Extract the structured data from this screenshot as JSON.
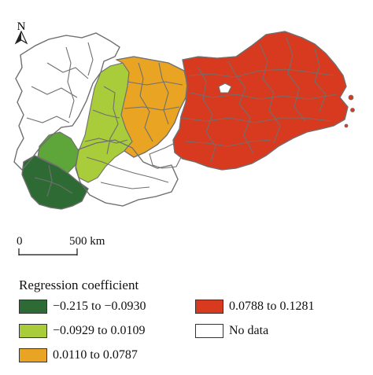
{
  "north_arrow": {
    "label": "N"
  },
  "scale_bar": {
    "start_label": "0",
    "end_label": "500 km"
  },
  "legend": {
    "title": "Regression coefficient",
    "items": [
      {
        "label": "−0.215 to −0.0930",
        "color": "#2e6b34"
      },
      {
        "label": "−0.0929 to 0.0109",
        "color": "#a9cd3a"
      },
      {
        "label": "0.0110 to 0.0787",
        "color": "#e9a424"
      },
      {
        "label": "0.0788 to 0.1281",
        "color": "#d83a1f"
      },
      {
        "label": "No data",
        "color": "#ffffff"
      }
    ]
  },
  "map_colors": {
    "dark_green": "#2e6b34",
    "mid_green": "#5ea53a",
    "light_green": "#a9cd3a",
    "orange": "#e9a424",
    "red": "#d83a1f",
    "no_data": "#ffffff",
    "boundary": "#6f6f6f"
  }
}
